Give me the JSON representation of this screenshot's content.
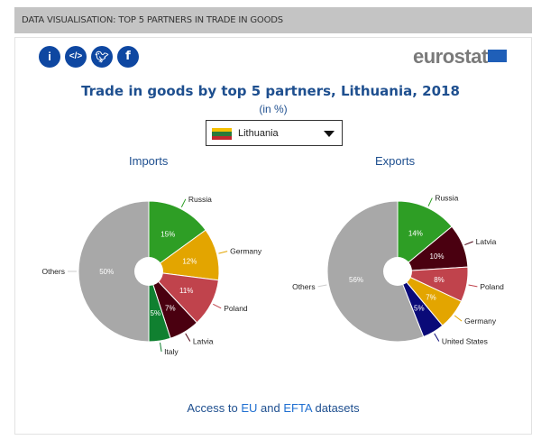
{
  "header": {
    "title": "DATA VISUALISATION: TOP 5 PARTNERS IN TRADE IN GOODS"
  },
  "icons": [
    "info-icon",
    "embed-code-icon",
    "twitter-icon",
    "facebook-icon"
  ],
  "logo": {
    "text": "eurostat"
  },
  "title": "Trade in goods by top 5 partners, Lithuania, 2018",
  "subtitle": "(in %)",
  "selector": {
    "value": "Lithuania"
  },
  "footer": {
    "prefix": "Access to",
    "eu": "EU",
    "and": "and",
    "efta": "EFTA",
    "suffix": "datasets"
  },
  "chart_data": [
    {
      "type": "pie",
      "title": "Imports",
      "unit": "%",
      "slices": [
        {
          "label": "Russia",
          "value": 15,
          "color": "#2e9e25"
        },
        {
          "label": "Germany",
          "value": 12,
          "color": "#e3a500"
        },
        {
          "label": "Poland",
          "value": 11,
          "color": "#c0434c"
        },
        {
          "label": "Latvia",
          "value": 7,
          "color": "#4a0010"
        },
        {
          "label": "Italy",
          "value": 5,
          "color": "#108030"
        },
        {
          "label": "Others",
          "value": 50,
          "color": "#a8a8a8"
        }
      ]
    },
    {
      "type": "pie",
      "title": "Exports",
      "unit": "%",
      "slices": [
        {
          "label": "Russia",
          "value": 14,
          "color": "#2e9e25"
        },
        {
          "label": "Latvia",
          "value": 10,
          "color": "#4a0010"
        },
        {
          "label": "Poland",
          "value": 8,
          "color": "#c0434c"
        },
        {
          "label": "Germany",
          "value": 7,
          "color": "#e3a500"
        },
        {
          "label": "United States",
          "value": 5,
          "color": "#0a0a78"
        },
        {
          "label": "Others",
          "value": 56,
          "color": "#a8a8a8"
        }
      ]
    }
  ]
}
